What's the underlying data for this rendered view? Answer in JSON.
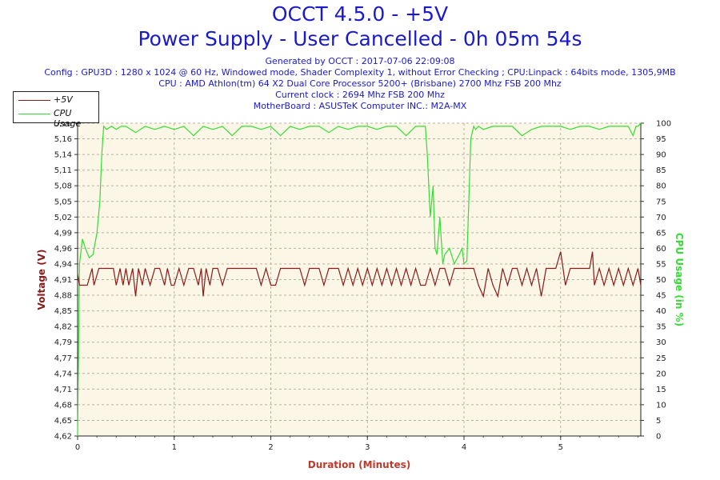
{
  "header": {
    "title": "OCCT 4.5.0 - +5V",
    "subtitle": "Power Supply - User Cancelled - 0h 05m 54s",
    "generated": "Generated by OCCT : 2017-07-06 22:09:08",
    "config": "Config : GPU3D : 1280 x 1024 @ 60 Hz, Windowed mode, Shader Complexity 1, without Error Checking ; CPU:Linpack : 64bits mode, 1305,9MB",
    "cpu": "CPU : AMD Athlon(tm) 64 X2 Dual Core Processor 5200+ (Brisbane) 2700 Mhz FSB 200 Mhz",
    "clock": "Current clock : 2694 Mhz FSB 200 Mhz",
    "motherboard": "MotherBoard : ASUSTeK Computer INC.: M2A-MX"
  },
  "colors": {
    "voltage": "#8b1a1a",
    "cpu": "#33dd33",
    "plot_bg": "#fbf6e6",
    "grid": "#b9b39e",
    "title": "#1a1acc",
    "xlabel": "#c0392b"
  },
  "chart_data": {
    "type": "line",
    "xlabel": "Duration (Minutes)",
    "ylabel_left": "Voltage (V)",
    "ylabel_right": "CPU Usage (in %)",
    "xlim": [
      0,
      5.83
    ],
    "ylim_left": [
      4.62,
      5.18
    ],
    "ylim_right": [
      0,
      100
    ],
    "x_ticks": [
      0,
      1,
      2,
      3,
      4,
      5
    ],
    "y_ticks_left": [
      "4,62",
      "4,65",
      "4,68",
      "4,71",
      "4,74",
      "4,77",
      "4,79",
      "4,82",
      "4,85",
      "4,88",
      "4,91",
      "4,94",
      "4,96",
      "4,99",
      "5,02",
      "5,05",
      "5,08",
      "5,11",
      "5,14",
      "5,16",
      "5,18"
    ],
    "y_ticks_right": [
      0,
      5,
      10,
      15,
      20,
      25,
      30,
      35,
      40,
      45,
      50,
      55,
      60,
      65,
      70,
      75,
      80,
      85,
      90,
      95,
      100
    ],
    "grid": true,
    "legend_position": "top-left",
    "series": [
      {
        "name": "+5V",
        "axis": "left",
        "x": [
          0,
          0.02,
          0.1,
          0.15,
          0.17,
          0.22,
          0.25,
          0.3,
          0.37,
          0.4,
          0.44,
          0.47,
          0.5,
          0.53,
          0.57,
          0.6,
          0.63,
          0.67,
          0.7,
          0.75,
          0.8,
          0.85,
          0.9,
          0.93,
          0.97,
          1.0,
          1.05,
          1.1,
          1.15,
          1.2,
          1.25,
          1.28,
          1.3,
          1.33,
          1.37,
          1.4,
          1.45,
          1.5,
          1.55,
          1.6,
          1.65,
          1.7,
          1.75,
          1.8,
          1.85,
          1.9,
          1.95,
          2.0,
          2.05,
          2.1,
          2.15,
          2.2,
          2.3,
          2.35,
          2.4,
          2.5,
          2.55,
          2.6,
          2.7,
          2.75,
          2.8,
          2.85,
          2.9,
          2.95,
          3.0,
          3.05,
          3.1,
          3.15,
          3.2,
          3.25,
          3.3,
          3.35,
          3.4,
          3.45,
          3.5,
          3.55,
          3.6,
          3.65,
          3.7,
          3.75,
          3.8,
          3.85,
          3.9,
          3.95,
          4.0,
          4.05,
          4.1,
          4.15,
          4.2,
          4.25,
          4.3,
          4.35,
          4.4,
          4.45,
          4.5,
          4.55,
          4.6,
          4.65,
          4.7,
          4.75,
          4.8,
          4.85,
          4.9,
          4.95,
          5.0,
          5.05,
          5.1,
          5.15,
          5.2,
          5.25,
          5.3,
          5.33,
          5.35,
          5.4,
          5.45,
          5.5,
          5.55,
          5.6,
          5.65,
          5.7,
          5.75,
          5.8,
          5.83
        ],
        "values": [
          4.91,
          4.89,
          4.89,
          4.92,
          4.89,
          4.92,
          4.92,
          4.92,
          4.92,
          4.89,
          4.92,
          4.89,
          4.92,
          4.89,
          4.92,
          4.87,
          4.92,
          4.89,
          4.92,
          4.89,
          4.92,
          4.92,
          4.89,
          4.92,
          4.89,
          4.89,
          4.92,
          4.89,
          4.92,
          4.92,
          4.89,
          4.92,
          4.87,
          4.92,
          4.89,
          4.92,
          4.92,
          4.89,
          4.92,
          4.92,
          4.92,
          4.92,
          4.92,
          4.92,
          4.92,
          4.89,
          4.92,
          4.89,
          4.89,
          4.92,
          4.92,
          4.92,
          4.92,
          4.89,
          4.92,
          4.92,
          4.89,
          4.92,
          4.92,
          4.89,
          4.92,
          4.89,
          4.92,
          4.89,
          4.92,
          4.89,
          4.92,
          4.89,
          4.92,
          4.89,
          4.92,
          4.89,
          4.92,
          4.89,
          4.92,
          4.89,
          4.89,
          4.92,
          4.89,
          4.92,
          4.92,
          4.89,
          4.92,
          4.92,
          4.92,
          4.92,
          4.92,
          4.89,
          4.87,
          4.92,
          4.89,
          4.87,
          4.92,
          4.89,
          4.92,
          4.92,
          4.89,
          4.92,
          4.89,
          4.92,
          4.87,
          4.92,
          4.92,
          4.92,
          4.95,
          4.89,
          4.92,
          4.92,
          4.92,
          4.92,
          4.92,
          4.95,
          4.89,
          4.92,
          4.89,
          4.92,
          4.89,
          4.92,
          4.89,
          4.92,
          4.89,
          4.92,
          4.89
        ]
      },
      {
        "name": "CPU Usage",
        "axis": "right",
        "x": [
          0,
          0.02,
          0.05,
          0.08,
          0.12,
          0.16,
          0.2,
          0.23,
          0.25,
          0.27,
          0.3,
          0.35,
          0.4,
          0.45,
          0.5,
          0.6,
          0.7,
          0.8,
          0.9,
          1.0,
          1.1,
          1.2,
          1.3,
          1.4,
          1.5,
          1.6,
          1.7,
          1.8,
          1.9,
          2.0,
          2.1,
          2.2,
          2.3,
          2.4,
          2.5,
          2.6,
          2.7,
          2.8,
          2.9,
          3.0,
          3.1,
          3.2,
          3.3,
          3.4,
          3.5,
          3.55,
          3.6,
          3.62,
          3.65,
          3.68,
          3.7,
          3.72,
          3.75,
          3.78,
          3.8,
          3.85,
          3.9,
          3.95,
          3.98,
          4.0,
          4.03,
          4.07,
          4.1,
          4.12,
          4.15,
          4.2,
          4.3,
          4.4,
          4.5,
          4.6,
          4.7,
          4.8,
          4.9,
          5.0,
          5.1,
          5.2,
          5.3,
          5.4,
          5.5,
          5.6,
          5.7,
          5.75,
          5.78,
          5.8,
          5.83
        ],
        "values": [
          0,
          55,
          63,
          60,
          57,
          58,
          65,
          75,
          90,
          99,
          98,
          99,
          98,
          99,
          99,
          97,
          99,
          98,
          99,
          98,
          99,
          96,
          99,
          98,
          99,
          96,
          99,
          99,
          98,
          99,
          96,
          99,
          98,
          99,
          99,
          97,
          99,
          98,
          99,
          99,
          98,
          99,
          99,
          96,
          99,
          99,
          99,
          90,
          70,
          80,
          60,
          58,
          70,
          55,
          58,
          60,
          55,
          58,
          60,
          55,
          56,
          95,
          99,
          98,
          99,
          98,
          99,
          99,
          99,
          96,
          98,
          99,
          99,
          99,
          98,
          99,
          99,
          98,
          99,
          99,
          99,
          96,
          99,
          99,
          100
        ]
      }
    ]
  }
}
